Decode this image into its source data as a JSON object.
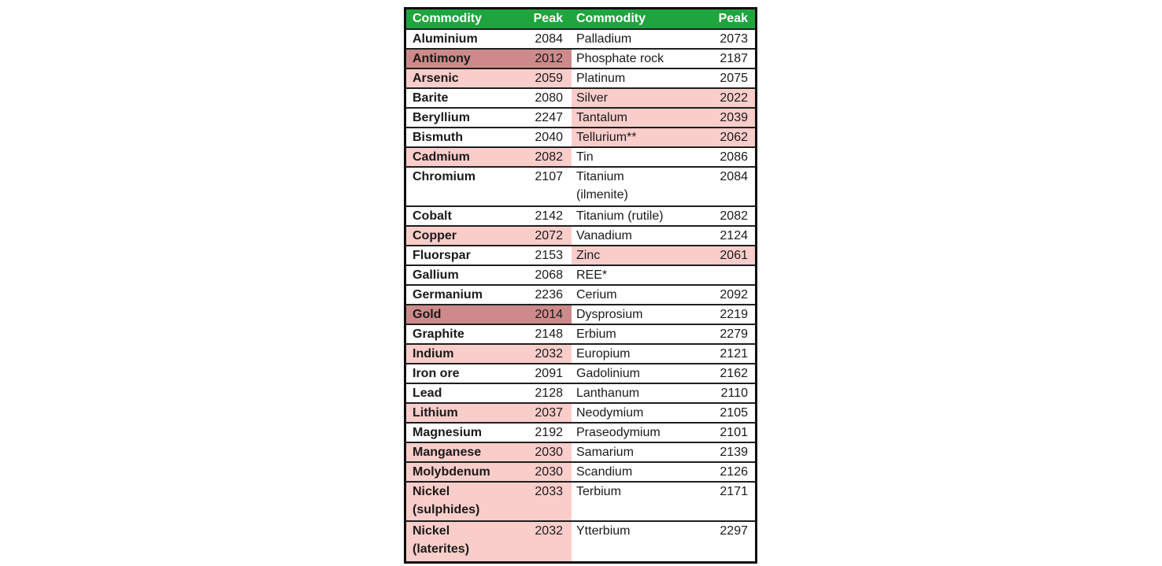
{
  "colors": {
    "header_bg": "#1FA53E",
    "header_text": "#FFFFFF",
    "highlight_dark": "#CE8A8A",
    "highlight_light": "#F9CDCA",
    "border": "#1F1F1F",
    "text": "#1A1A1A"
  },
  "chart_data": {
    "type": "table",
    "title": "",
    "columns": [
      "Commodity",
      "Peak",
      "Commodity",
      "Peak"
    ],
    "legend_note": "highlight values: none | light (pink) | dark (rose); indent = rare-earth element sub-item under REE*",
    "rows": [
      {
        "l_name": "Aluminium",
        "l_peak": "2084",
        "l_hl": "none",
        "r_name": "Palladium",
        "r_peak": "2073",
        "r_hl": "none",
        "r_indent": false,
        "tall": false
      },
      {
        "l_name": "Antimony",
        "l_peak": "2012",
        "l_hl": "dark",
        "r_name": "Phosphate rock",
        "r_peak": "2187",
        "r_hl": "none",
        "r_indent": false,
        "tall": false
      },
      {
        "l_name": "Arsenic",
        "l_peak": "2059",
        "l_hl": "light",
        "r_name": "Platinum",
        "r_peak": "2075",
        "r_hl": "none",
        "r_indent": false,
        "tall": false
      },
      {
        "l_name": "Barite",
        "l_peak": "2080",
        "l_hl": "none",
        "r_name": "Silver",
        "r_peak": "2022",
        "r_hl": "light",
        "r_indent": false,
        "tall": false
      },
      {
        "l_name": "Beryllium",
        "l_peak": "2247",
        "l_hl": "none",
        "r_name": "Tantalum",
        "r_peak": "2039",
        "r_hl": "light",
        "r_indent": false,
        "tall": false
      },
      {
        "l_name": "Bismuth",
        "l_peak": "2040",
        "l_hl": "none",
        "r_name": "Tellurium**",
        "r_peak": "2062",
        "r_hl": "light",
        "r_indent": false,
        "tall": false
      },
      {
        "l_name": "Cadmium",
        "l_peak": "2082",
        "l_hl": "light",
        "r_name": "Tin",
        "r_peak": "2086",
        "r_hl": "none",
        "r_indent": false,
        "tall": false
      },
      {
        "l_name": "Chromium",
        "l_peak": "2107",
        "l_hl": "none",
        "r_name": "Titanium\n(ilmenite)",
        "r_peak": "2084",
        "r_hl": "none",
        "r_indent": false,
        "tall": true
      },
      {
        "l_name": "Cobalt",
        "l_peak": "2142",
        "l_hl": "none",
        "r_name": "Titanium (rutile)",
        "r_peak": "2082",
        "r_hl": "none",
        "r_indent": false,
        "tall": false
      },
      {
        "l_name": "Copper",
        "l_peak": "2072",
        "l_hl": "light",
        "r_name": "Vanadium",
        "r_peak": "2124",
        "r_hl": "none",
        "r_indent": false,
        "tall": false
      },
      {
        "l_name": "Fluorspar",
        "l_peak": "2153",
        "l_hl": "none",
        "r_name": "Zinc",
        "r_peak": "2061",
        "r_hl": "light",
        "r_indent": false,
        "tall": false
      },
      {
        "l_name": "Gallium",
        "l_peak": "2068",
        "l_hl": "none",
        "r_name": "REE*",
        "r_peak": "",
        "r_hl": "none",
        "r_indent": false,
        "tall": false
      },
      {
        "l_name": "Germanium",
        "l_peak": "2236",
        "l_hl": "none",
        "r_name": "Cerium",
        "r_peak": "2092",
        "r_hl": "none",
        "r_indent": true,
        "tall": false
      },
      {
        "l_name": "Gold",
        "l_peak": "2014",
        "l_hl": "dark",
        "r_name": "Dysprosium",
        "r_peak": "2219",
        "r_hl": "none",
        "r_indent": true,
        "tall": false
      },
      {
        "l_name": "Graphite",
        "l_peak": "2148",
        "l_hl": "none",
        "r_name": "Erbium",
        "r_peak": "2279",
        "r_hl": "none",
        "r_indent": true,
        "tall": false
      },
      {
        "l_name": "Indium",
        "l_peak": "2032",
        "l_hl": "light",
        "r_name": "Europium",
        "r_peak": "2121",
        "r_hl": "none",
        "r_indent": true,
        "tall": false
      },
      {
        "l_name": "Iron ore",
        "l_peak": "2091",
        "l_hl": "none",
        "r_name": "Gadolinium",
        "r_peak": "2162",
        "r_hl": "none",
        "r_indent": true,
        "tall": false
      },
      {
        "l_name": "Lead",
        "l_peak": "2128",
        "l_hl": "none",
        "r_name": "Lanthanum",
        "r_peak": "2110",
        "r_hl": "none",
        "r_indent": true,
        "tall": false
      },
      {
        "l_name": "Lithium",
        "l_peak": "2037",
        "l_hl": "light",
        "r_name": "Neodymium",
        "r_peak": "2105",
        "r_hl": "none",
        "r_indent": true,
        "tall": false
      },
      {
        "l_name": "Magnesium",
        "l_peak": "2192",
        "l_hl": "none",
        "r_name": "Praseodymium",
        "r_peak": "2101",
        "r_hl": "none",
        "r_indent": true,
        "tall": false
      },
      {
        "l_name": "Manganese",
        "l_peak": "2030",
        "l_hl": "light",
        "r_name": "Samarium",
        "r_peak": "2139",
        "r_hl": "none",
        "r_indent": true,
        "tall": false
      },
      {
        "l_name": "Molybdenum",
        "l_peak": "2030",
        "l_hl": "light",
        "r_name": "Scandium",
        "r_peak": "2126",
        "r_hl": "none",
        "r_indent": true,
        "tall": false
      },
      {
        "l_name": "Nickel\n(sulphides)",
        "l_peak": "2033",
        "l_hl": "light",
        "r_name": "Terbium",
        "r_peak": "2171",
        "r_hl": "none",
        "r_indent": true,
        "tall": true
      },
      {
        "l_name": "Nickel\n(laterites)",
        "l_peak": "2032",
        "l_hl": "light",
        "r_name": "Ytterbium",
        "r_peak": "2297",
        "r_hl": "none",
        "r_indent": true,
        "tall": true
      }
    ]
  }
}
